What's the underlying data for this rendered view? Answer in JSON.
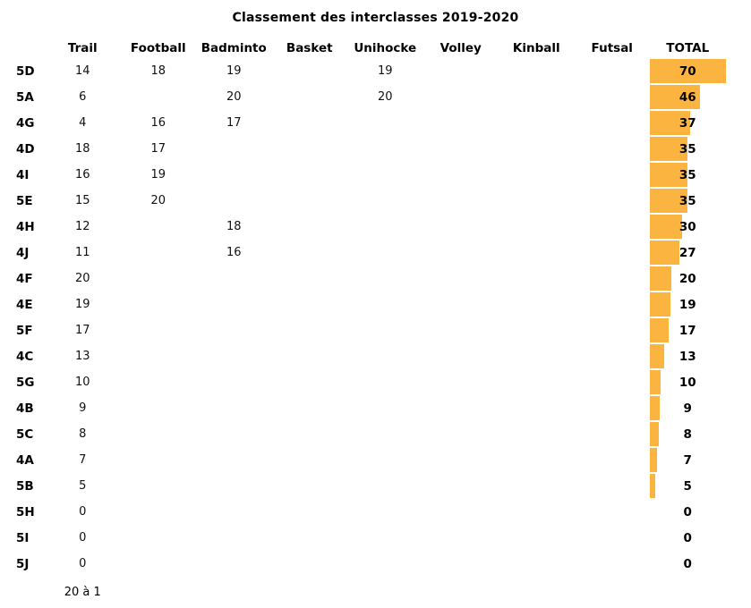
{
  "chart_data": {
    "type": "table",
    "title": "Classement des interclasses 2019-2020",
    "columns": [
      "Trail",
      "Football",
      "Badminto",
      "Basket",
      "Unihocke",
      "Volley",
      "Kinball",
      "Futsal",
      "TOTAL"
    ],
    "rows": [
      {
        "label": "5D",
        "values": [
          14,
          18,
          19,
          null,
          19,
          null,
          null,
          null
        ],
        "total": 70
      },
      {
        "label": "5A",
        "values": [
          6,
          null,
          20,
          null,
          20,
          null,
          null,
          null
        ],
        "total": 46
      },
      {
        "label": "4G",
        "values": [
          4,
          16,
          17,
          null,
          null,
          null,
          null,
          null
        ],
        "total": 37
      },
      {
        "label": "4D",
        "values": [
          18,
          17,
          null,
          null,
          null,
          null,
          null,
          null
        ],
        "total": 35
      },
      {
        "label": "4I",
        "values": [
          16,
          19,
          null,
          null,
          null,
          null,
          null,
          null
        ],
        "total": 35
      },
      {
        "label": "5E",
        "values": [
          15,
          20,
          null,
          null,
          null,
          null,
          null,
          null
        ],
        "total": 35
      },
      {
        "label": "4H",
        "values": [
          12,
          null,
          18,
          null,
          null,
          null,
          null,
          null
        ],
        "total": 30
      },
      {
        "label": "4J",
        "values": [
          11,
          null,
          16,
          null,
          null,
          null,
          null,
          null
        ],
        "total": 27
      },
      {
        "label": "4F",
        "values": [
          20,
          null,
          null,
          null,
          null,
          null,
          null,
          null
        ],
        "total": 20
      },
      {
        "label": "4E",
        "values": [
          19,
          null,
          null,
          null,
          null,
          null,
          null,
          null
        ],
        "total": 19
      },
      {
        "label": "5F",
        "values": [
          17,
          null,
          null,
          null,
          null,
          null,
          null,
          null
        ],
        "total": 17
      },
      {
        "label": "4C",
        "values": [
          13,
          null,
          null,
          null,
          null,
          null,
          null,
          null
        ],
        "total": 13
      },
      {
        "label": "5G",
        "values": [
          10,
          null,
          null,
          null,
          null,
          null,
          null,
          null
        ],
        "total": 10
      },
      {
        "label": "4B",
        "values": [
          9,
          null,
          null,
          null,
          null,
          null,
          null,
          null
        ],
        "total": 9
      },
      {
        "label": "5C",
        "values": [
          8,
          null,
          null,
          null,
          null,
          null,
          null,
          null
        ],
        "total": 8
      },
      {
        "label": "4A",
        "values": [
          7,
          null,
          null,
          null,
          null,
          null,
          null,
          null
        ],
        "total": 7
      },
      {
        "label": "5B",
        "values": [
          5,
          null,
          null,
          null,
          null,
          null,
          null,
          null
        ],
        "total": 5
      },
      {
        "label": "5H",
        "values": [
          0,
          null,
          null,
          null,
          null,
          null,
          null,
          null
        ],
        "total": 0
      },
      {
        "label": "5I",
        "values": [
          0,
          null,
          null,
          null,
          null,
          null,
          null,
          null
        ],
        "total": 0
      },
      {
        "label": "5J",
        "values": [
          0,
          null,
          null,
          null,
          null,
          null,
          null,
          null
        ],
        "total": 0
      }
    ],
    "bar": {
      "column": "TOTAL",
      "max": 70,
      "color": "#FCB441"
    },
    "note": "20 à 1",
    "layout": {
      "grid": "off",
      "bars_fill_cell_at_max": true
    }
  }
}
